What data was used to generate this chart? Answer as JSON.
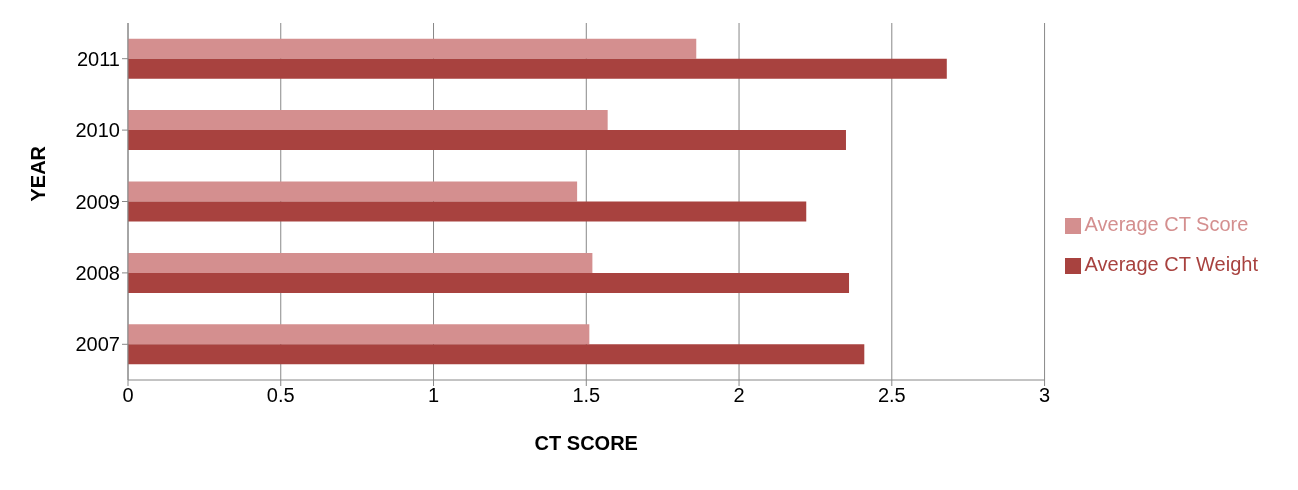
{
  "chart_data": {
    "type": "bar",
    "orientation": "horizontal",
    "xlabel": "CT SCORE",
    "ylabel": "YEAR",
    "categories": [
      "2011",
      "2010",
      "2009",
      "2008",
      "2007"
    ],
    "series": [
      {
        "name": "Average CT Score",
        "color": "#d48f8f",
        "values": [
          1.86,
          1.57,
          1.47,
          1.52,
          1.51
        ]
      },
      {
        "name": "Average CT Weight",
        "color": "#a8423f",
        "values": [
          2.68,
          2.35,
          2.22,
          2.36,
          2.41
        ]
      }
    ],
    "xlim": [
      0,
      3
    ],
    "xticks": [
      0,
      0.5,
      1,
      1.5,
      2,
      2.5,
      3
    ],
    "grid": "x",
    "legend": "right"
  }
}
